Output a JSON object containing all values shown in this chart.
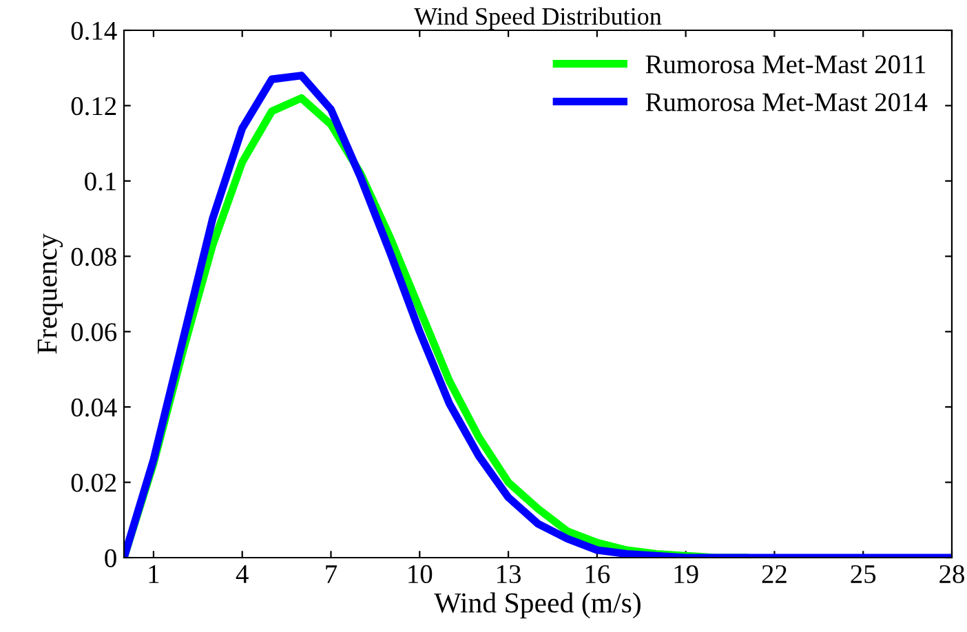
{
  "chart_data": {
    "type": "line",
    "title": "Wind Speed Distribution",
    "xlabel": "Wind Speed (m/s)",
    "ylabel": "Frequency",
    "x": [
      0,
      1,
      2,
      3,
      4,
      5,
      6,
      7,
      8,
      9,
      10,
      11,
      12,
      13,
      14,
      15,
      16,
      17,
      18,
      19,
      20,
      21,
      22,
      23,
      24,
      25,
      26,
      27,
      28
    ],
    "series": [
      {
        "name": "Rumorosa Met-Mast 2011",
        "color": "#00ff00",
        "values": [
          0,
          0.025,
          0.055,
          0.083,
          0.105,
          0.1185,
          0.122,
          0.115,
          0.102,
          0.085,
          0.066,
          0.047,
          0.032,
          0.02,
          0.013,
          0.007,
          0.004,
          0.002,
          0.001,
          0.0005,
          0,
          0,
          null,
          null,
          null,
          null,
          null,
          null,
          null
        ]
      },
      {
        "name": "Rumorosa Met-Mast 2014",
        "color": "#0000ff",
        "values": [
          0,
          0.026,
          0.058,
          0.09,
          0.114,
          0.127,
          0.128,
          0.119,
          0.101,
          0.081,
          0.06,
          0.041,
          0.027,
          0.016,
          0.009,
          0.005,
          0.002,
          0.001,
          0.0005,
          0,
          0,
          0,
          0,
          0,
          0,
          0,
          0,
          0,
          0
        ]
      }
    ],
    "xlim": [
      0,
      28
    ],
    "xticks": [
      1,
      4,
      7,
      10,
      13,
      16,
      19,
      22,
      25,
      28
    ],
    "ylim": [
      0,
      0.14
    ],
    "yticks": [
      0,
      0.02,
      0.04,
      0.06,
      0.08,
      0.1,
      0.12,
      0.14
    ],
    "grid": false,
    "legend": "top right",
    "marker": "none",
    "line_style": "solid"
  }
}
